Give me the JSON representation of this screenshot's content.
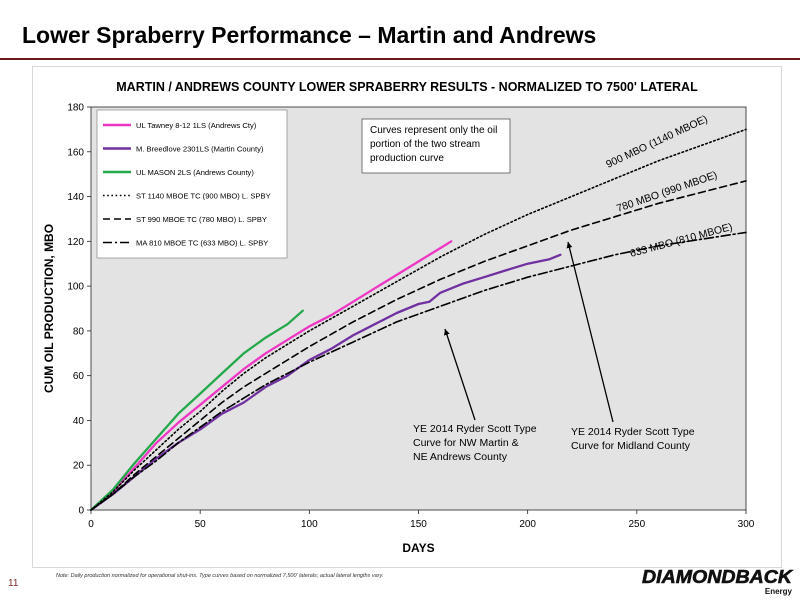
{
  "slide": {
    "title": "Lower Spraberry Performance – Martin and Andrews",
    "page_number": "11",
    "footnote": "Note: Daily production normalized for operational shut-ins. Type curves based on normalized 7,500' laterals; actual lateral lengths vary.",
    "logo_text": "DIAMONDBACK",
    "logo_subtext": "Energy",
    "accent_color": "#6b1d1d"
  },
  "chart_data": {
    "type": "line",
    "title": "MARTIN / ANDREWS COUNTY LOWER SPRABERRY RESULTS - NORMALIZED TO 7500' LATERAL",
    "xlabel": "DAYS",
    "ylabel": "CUM OIL PRODUCTION, MBO",
    "xlim": [
      0,
      300
    ],
    "ylim": [
      0,
      180
    ],
    "xticks": [
      0,
      50,
      100,
      150,
      200,
      250,
      300
    ],
    "yticks": [
      0,
      20,
      40,
      60,
      80,
      100,
      120,
      140,
      160,
      180
    ],
    "grid": false,
    "plot_background": "#e3e3e3",
    "legend_position": "top-left",
    "series": [
      {
        "name": "UL Tawney 8-12 1LS (Andrews Cty)",
        "color": "#ee36c4",
        "style": "solid",
        "x": [
          0,
          10,
          20,
          30,
          40,
          50,
          60,
          70,
          80,
          90,
          100,
          110,
          120,
          130,
          140,
          150,
          160,
          165
        ],
        "y": [
          0,
          8,
          19,
          30,
          39,
          47,
          55,
          63,
          70,
          76,
          82,
          87,
          93,
          99,
          105,
          111,
          117,
          120
        ]
      },
      {
        "name": "M. Breedlove 2301LS (Martin County)",
        "color": "#7030a0",
        "style": "solid",
        "x": [
          0,
          10,
          20,
          30,
          40,
          50,
          60,
          70,
          80,
          90,
          100,
          110,
          120,
          130,
          140,
          150,
          155,
          160,
          170,
          180,
          190,
          200,
          210,
          215
        ],
        "y": [
          0,
          7,
          15,
          23,
          30,
          36,
          43,
          48,
          55,
          60,
          67,
          72,
          78,
          83,
          88,
          92,
          93,
          97,
          101,
          104,
          107,
          110,
          112,
          114
        ]
      },
      {
        "name": "UL MASON 2LS (Andrews County)",
        "color": "#23a84a",
        "style": "solid",
        "x": [
          0,
          10,
          20,
          30,
          40,
          50,
          60,
          70,
          80,
          90,
          97
        ],
        "y": [
          0,
          9,
          21,
          32,
          43,
          52,
          61,
          70,
          77,
          83,
          89
        ]
      },
      {
        "name": "ST 1140 MBOE TC (900 MBO) L. SPBY",
        "color": "#000000",
        "style": "dotted",
        "x": [
          0,
          10,
          20,
          30,
          40,
          50,
          60,
          70,
          80,
          90,
          100,
          120,
          140,
          160,
          180,
          200,
          220,
          240,
          260,
          280,
          300
        ],
        "y": [
          0,
          8,
          18,
          27,
          36,
          44,
          53,
          61,
          68,
          74,
          80,
          91,
          102,
          113,
          123,
          132,
          140,
          148,
          156,
          163,
          170
        ]
      },
      {
        "name": "ST 990 MBOE TC (780 MBO) L. SPBY",
        "color": "#000000",
        "style": "dashed",
        "x": [
          0,
          10,
          20,
          30,
          40,
          50,
          60,
          70,
          80,
          90,
          100,
          120,
          140,
          160,
          180,
          200,
          220,
          240,
          260,
          280,
          300
        ],
        "y": [
          0,
          7,
          16,
          24,
          32,
          40,
          48,
          55,
          61,
          67,
          73,
          84,
          94,
          103,
          111,
          118,
          125,
          131,
          137,
          142,
          147
        ]
      },
      {
        "name": "MA 810 MBOE TC (633 MBO) L. SPBY",
        "color": "#000000",
        "style": "dashdot",
        "x": [
          0,
          10,
          20,
          30,
          40,
          50,
          60,
          70,
          80,
          90,
          100,
          120,
          140,
          160,
          180,
          200,
          220,
          240,
          260,
          280,
          300
        ],
        "y": [
          0,
          7,
          15,
          22,
          30,
          37,
          44,
          50,
          56,
          61,
          66,
          75,
          84,
          91,
          98,
          104,
          109,
          114,
          118,
          121,
          124
        ]
      }
    ],
    "annotations": [
      {
        "id": "note",
        "lines": [
          "Curves represent only the oil",
          "portion of the two stream",
          "production curve"
        ]
      },
      {
        "id": "label-900",
        "text": "900 MBO (1140 MBOE)"
      },
      {
        "id": "label-780",
        "text": "780 MBO (990 MBOE)"
      },
      {
        "id": "label-633",
        "text": "633 MBO (810 MBOE)"
      },
      {
        "id": "ys-nw",
        "lines": [
          "YE 2014  Ryder Scott Type",
          "Curve for NW Martin &",
          "NE Andrews County"
        ]
      },
      {
        "id": "ys-midland",
        "lines": [
          "YE 2014  Ryder Scott Type",
          "Curve for Midland County"
        ]
      }
    ]
  }
}
